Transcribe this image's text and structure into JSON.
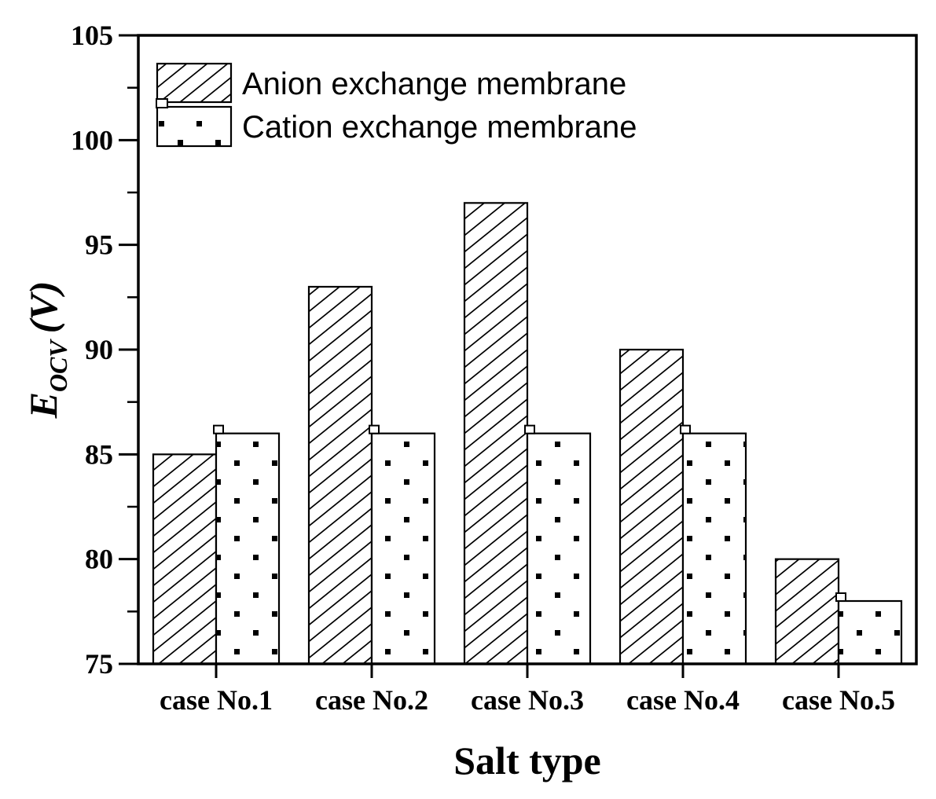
{
  "chart_data": {
    "type": "bar",
    "title": "",
    "xlabel": "Salt type",
    "ylabel": {
      "text": "E_OCV (V)",
      "main": "E",
      "subscript": "OCV",
      "unit": "(V)"
    },
    "categories": [
      "case No.1",
      "case No.2",
      "case No.3",
      "case No.4",
      "case No.5"
    ],
    "series": [
      {
        "name": "Anion exchange membrane",
        "pattern": "diagonal-hatch",
        "values": [
          85,
          93,
          97,
          90,
          80
        ],
        "corner_marker": false
      },
      {
        "name": "Cation exchange membrane",
        "pattern": "dots",
        "values": [
          86,
          86,
          86,
          86,
          78
        ],
        "corner_marker": true
      }
    ],
    "ylim": [
      75,
      105
    ],
    "yticks": [
      75,
      80,
      85,
      90,
      95,
      100,
      105
    ],
    "ytick_labels": [
      "75",
      "80",
      "85",
      "90",
      "95",
      "100",
      "105"
    ],
    "minor_tick_interval": 2.5,
    "grid": false,
    "legend_position": "top-left",
    "colors": {
      "foreground": "#000000",
      "background": "#ffffff"
    }
  }
}
